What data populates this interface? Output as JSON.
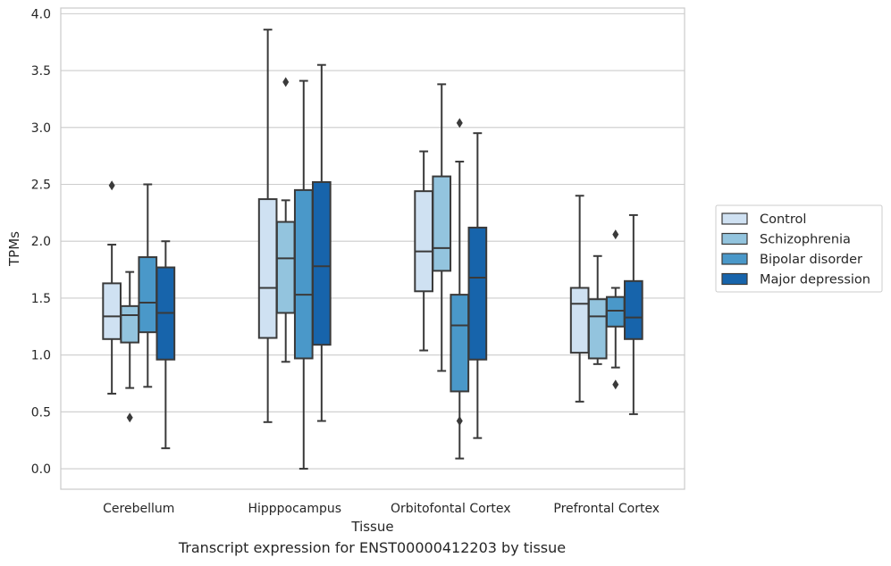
{
  "caption": "Transcript expression for ENST00000412203 by tissue",
  "chart_data": {
    "type": "box",
    "xlabel": "Tissue",
    "ylabel": "TPMs",
    "ylim": [
      -0.18,
      4.05
    ],
    "yticks": [
      "0.0",
      "0.5",
      "1.0",
      "1.5",
      "2.0",
      "2.5",
      "3.0",
      "3.5",
      "4.0"
    ],
    "grid": "horizontal",
    "legend_position": "right",
    "categories": [
      "Cerebellum",
      "Hipppocampus",
      "Orbitofontal Cortex",
      "Prefrontal Cortex"
    ],
    "series": [
      {
        "name": "Control",
        "color": "#cfe1f2",
        "boxes": [
          {
            "whislo": 0.66,
            "q1": 1.14,
            "med": 1.34,
            "q3": 1.63,
            "whishi": 1.97,
            "fliers": [
              2.49
            ]
          },
          {
            "whislo": 0.41,
            "q1": 1.15,
            "med": 1.59,
            "q3": 2.37,
            "whishi": 3.86,
            "fliers": []
          },
          {
            "whislo": 1.04,
            "q1": 1.56,
            "med": 1.91,
            "q3": 2.44,
            "whishi": 2.79,
            "fliers": []
          },
          {
            "whislo": 0.59,
            "q1": 1.02,
            "med": 1.45,
            "q3": 1.59,
            "whishi": 2.4,
            "fliers": []
          }
        ]
      },
      {
        "name": "Schizophrenia",
        "color": "#93c4de",
        "boxes": [
          {
            "whislo": 0.71,
            "q1": 1.11,
            "med": 1.35,
            "q3": 1.43,
            "whishi": 1.73,
            "fliers": [
              0.45
            ]
          },
          {
            "whislo": 0.94,
            "q1": 1.37,
            "med": 1.85,
            "q3": 2.17,
            "whishi": 2.36,
            "fliers": [
              3.4
            ]
          },
          {
            "whislo": 0.86,
            "q1": 1.74,
            "med": 1.94,
            "q3": 2.57,
            "whishi": 3.38,
            "fliers": []
          },
          {
            "whislo": 0.92,
            "q1": 0.97,
            "med": 1.34,
            "q3": 1.49,
            "whishi": 1.87,
            "fliers": []
          }
        ]
      },
      {
        "name": "Bipolar disorder",
        "color": "#4a98c9",
        "boxes": [
          {
            "whislo": 0.72,
            "q1": 1.2,
            "med": 1.46,
            "q3": 1.86,
            "whishi": 2.5,
            "fliers": []
          },
          {
            "whislo": 0.0,
            "q1": 0.97,
            "med": 1.53,
            "q3": 2.45,
            "whishi": 3.41,
            "fliers": []
          },
          {
            "whislo": 0.09,
            "q1": 0.68,
            "med": 1.26,
            "q3": 1.53,
            "whishi": 2.7,
            "fliers": [
              0.42,
              3.04
            ]
          },
          {
            "whislo": 0.89,
            "q1": 1.25,
            "med": 1.39,
            "q3": 1.51,
            "whishi": 1.59,
            "fliers": [
              0.74,
              2.06
            ]
          }
        ]
      },
      {
        "name": "Major depression",
        "color": "#1764ab",
        "boxes": [
          {
            "whislo": 0.18,
            "q1": 0.96,
            "med": 1.37,
            "q3": 1.77,
            "whishi": 2.0,
            "fliers": []
          },
          {
            "whislo": 0.42,
            "q1": 1.09,
            "med": 1.78,
            "q3": 2.52,
            "whishi": 3.55,
            "fliers": []
          },
          {
            "whislo": 0.27,
            "q1": 0.96,
            "med": 1.68,
            "q3": 2.12,
            "whishi": 2.95,
            "fliers": []
          },
          {
            "whislo": 0.48,
            "q1": 1.14,
            "med": 1.33,
            "q3": 1.65,
            "whishi": 2.23,
            "fliers": []
          }
        ]
      }
    ]
  }
}
